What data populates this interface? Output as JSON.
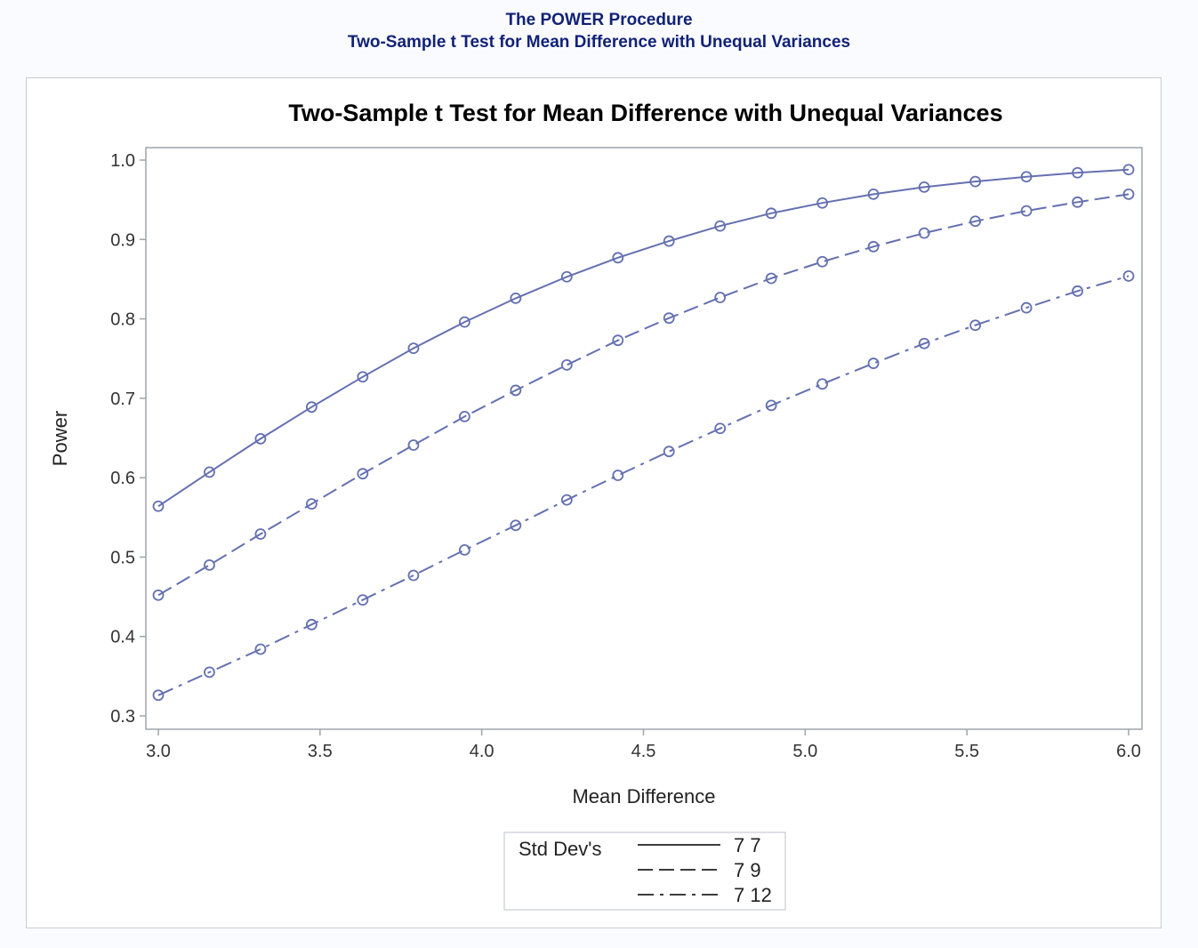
{
  "header": {
    "procedure_title": "The POWER Procedure",
    "subtitle": "Two-Sample t Test for Mean Difference with Unequal Variances"
  },
  "colors": {
    "header_text": "#112277",
    "series_line": "#6470b0",
    "frame": "#a0a4ac",
    "background": "#fafbfe"
  },
  "chart_data": {
    "type": "line",
    "title": "Two-Sample t Test for Mean Difference with Unequal Variances",
    "xlabel": "Mean Difference",
    "ylabel": "Power",
    "xlim": [
      3.0,
      6.0
    ],
    "ylim": [
      0.3,
      1.0
    ],
    "x_ticks": [
      "3.0",
      "3.5",
      "4.0",
      "4.5",
      "5.0",
      "5.5",
      "6.0"
    ],
    "y_ticks": [
      "0.3",
      "0.4",
      "0.5",
      "0.6",
      "0.7",
      "0.8",
      "0.9",
      "1.0"
    ],
    "grid": false,
    "legend": {
      "title": "Std Dev's",
      "placement": "bottom"
    },
    "marker": "open-circle",
    "x": [
      3.0,
      3.158,
      3.316,
      3.474,
      3.632,
      3.789,
      3.947,
      4.105,
      4.263,
      4.421,
      4.579,
      4.737,
      4.895,
      5.053,
      5.211,
      5.368,
      5.526,
      5.684,
      5.842,
      6.0
    ],
    "series": [
      {
        "name": "7 7",
        "dash": "solid",
        "values": [
          0.564,
          0.607,
          0.649,
          0.689,
          0.727,
          0.763,
          0.796,
          0.826,
          0.853,
          0.877,
          0.898,
          0.917,
          0.933,
          0.946,
          0.957,
          0.966,
          0.973,
          0.979,
          0.984,
          0.988
        ]
      },
      {
        "name": "7 9",
        "dash": "dashed",
        "values": [
          0.452,
          0.49,
          0.529,
          0.567,
          0.605,
          0.641,
          0.677,
          0.71,
          0.742,
          0.773,
          0.801,
          0.827,
          0.851,
          0.872,
          0.891,
          0.908,
          0.923,
          0.936,
          0.947,
          0.957
        ]
      },
      {
        "name": "7 12",
        "dash": "dash-dot",
        "values": [
          0.326,
          0.355,
          0.384,
          0.415,
          0.446,
          0.477,
          0.509,
          0.54,
          0.572,
          0.603,
          0.633,
          0.662,
          0.691,
          0.718,
          0.744,
          0.769,
          0.792,
          0.814,
          0.835,
          0.854
        ]
      }
    ]
  }
}
